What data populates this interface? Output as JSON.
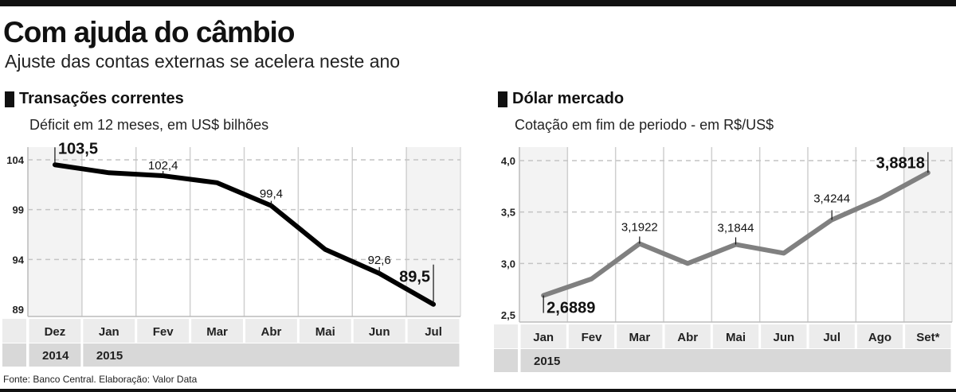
{
  "header": {
    "title": "Com ajuda do câmbio",
    "subtitle": "Ajuste das contas externas se acelera neste ano"
  },
  "footer": "Fonte: Banco Central. Elaboração: Valor Data",
  "chart_data": [
    {
      "type": "line",
      "title": "Transações correntes",
      "subtitle": "Déficit em 12 meses, em US$ bilhões",
      "categories": [
        "Dez",
        "Jan",
        "Fev",
        "Mar",
        "Abr",
        "Mai",
        "Jun",
        "Jul"
      ],
      "year_labels": [
        {
          "label": "2014",
          "start": "Dez"
        },
        {
          "label": "2015",
          "start": "Jan"
        }
      ],
      "values": [
        103.5,
        102.7,
        102.4,
        101.7,
        99.4,
        95.0,
        92.6,
        89.5
      ],
      "data_labels": [
        {
          "category": "Dez",
          "text": "103,5",
          "emphasis": true
        },
        {
          "category": "Fev",
          "text": "102,4"
        },
        {
          "category": "Abr",
          "text": "99,4"
        },
        {
          "category": "Jun",
          "text": "92,6"
        },
        {
          "category": "Jul",
          "text": "89,5",
          "emphasis": true
        }
      ],
      "yticks": [
        89,
        94,
        99,
        104
      ],
      "ytick_labels": [
        "89",
        "94",
        "99",
        "104"
      ],
      "ylim": [
        89,
        104
      ],
      "grid": true,
      "line_color": "#000000"
    },
    {
      "type": "line",
      "title": "Dólar mercado",
      "subtitle": "Cotação em fim de periodo - em R$/US$",
      "categories": [
        "Jan",
        "Fev",
        "Mar",
        "Abr",
        "Mai",
        "Jun",
        "Jul",
        "Ago",
        "Set*"
      ],
      "year_labels": [
        {
          "label": "2015",
          "start": "Jan"
        }
      ],
      "values": [
        2.6889,
        2.85,
        3.1922,
        3.0,
        3.1844,
        3.1,
        3.4244,
        3.63,
        3.8818
      ],
      "data_labels": [
        {
          "category": "Jan",
          "text": "2,6889",
          "emphasis": true
        },
        {
          "category": "Mar",
          "text": "3,1922"
        },
        {
          "category": "Mai",
          "text": "3,1844"
        },
        {
          "category": "Jul",
          "text": "3,4244"
        },
        {
          "category": "Set*",
          "text": "3,8818",
          "emphasis": true
        }
      ],
      "yticks": [
        2.5,
        3.0,
        3.5,
        4.0
      ],
      "ytick_labels": [
        "2,5",
        "3,0",
        "3,5",
        "4,0"
      ],
      "ylim": [
        2.5,
        4.0
      ],
      "grid": true,
      "line_color": "#808080"
    }
  ]
}
